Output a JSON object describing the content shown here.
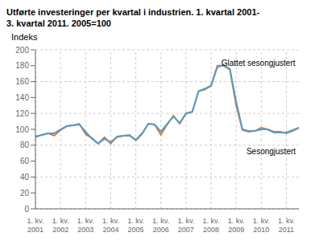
{
  "chart_data": {
    "type": "line",
    "title": "Utførte investeringer per kvartal i industrien. 1. kvartal 2001-\n3. kvartal 2011. 2005=100",
    "y_label": "Indeks",
    "categories": [
      "1. kv.\n2001",
      null,
      null,
      null,
      "1. kv.\n2002",
      null,
      null,
      null,
      "1. kv.\n2003",
      null,
      null,
      null,
      "1. kv.\n2004",
      null,
      null,
      null,
      "1. kv.\n2005",
      null,
      null,
      null,
      "1. kv.\n2006",
      null,
      null,
      null,
      "1. kv.\n2007",
      null,
      null,
      null,
      "1. kv.\n2008",
      null,
      null,
      null,
      "1. kv.\n2009",
      null,
      null,
      null,
      "1. kv.\n2010",
      null,
      null,
      null,
      "1. kv.\n2011",
      null,
      null
    ],
    "series": [
      {
        "name": "Sesongjustert",
        "color": "#E87722",
        "values": [
          90,
          93,
          95,
          92,
          99,
          104,
          105,
          107,
          94,
          89,
          82,
          90,
          82,
          91,
          92,
          93,
          86,
          94,
          107,
          106,
          93,
          106,
          117,
          107,
          120,
          122,
          148,
          150,
          155,
          180,
          180,
          175,
          130,
          99,
          97,
          98,
          102,
          100,
          97,
          97,
          95,
          98,
          102
        ]
      },
      {
        "name": "Glattet sesongjustert",
        "color": "#4D9FD6",
        "values": [
          91,
          93,
          95,
          95,
          100,
          104,
          105,
          106,
          97,
          88,
          82,
          88,
          84,
          90,
          92,
          92,
          87,
          95,
          107,
          106,
          97,
          107,
          116,
          108,
          120,
          122,
          148,
          151,
          155,
          178,
          181,
          176,
          135,
          100,
          98,
          98,
          100,
          100,
          96,
          96,
          96,
          99,
          102
        ]
      }
    ],
    "annotations": [
      {
        "text": "Glattet sesongjustert",
        "x": 29,
        "y": 183
      },
      {
        "text": "Sesongjustert",
        "x": 33,
        "y": 72
      }
    ],
    "ylim": [
      0,
      200
    ],
    "yticks": [
      0,
      20,
      40,
      60,
      80,
      100,
      120,
      140,
      160,
      180,
      200
    ],
    "grid": true
  }
}
